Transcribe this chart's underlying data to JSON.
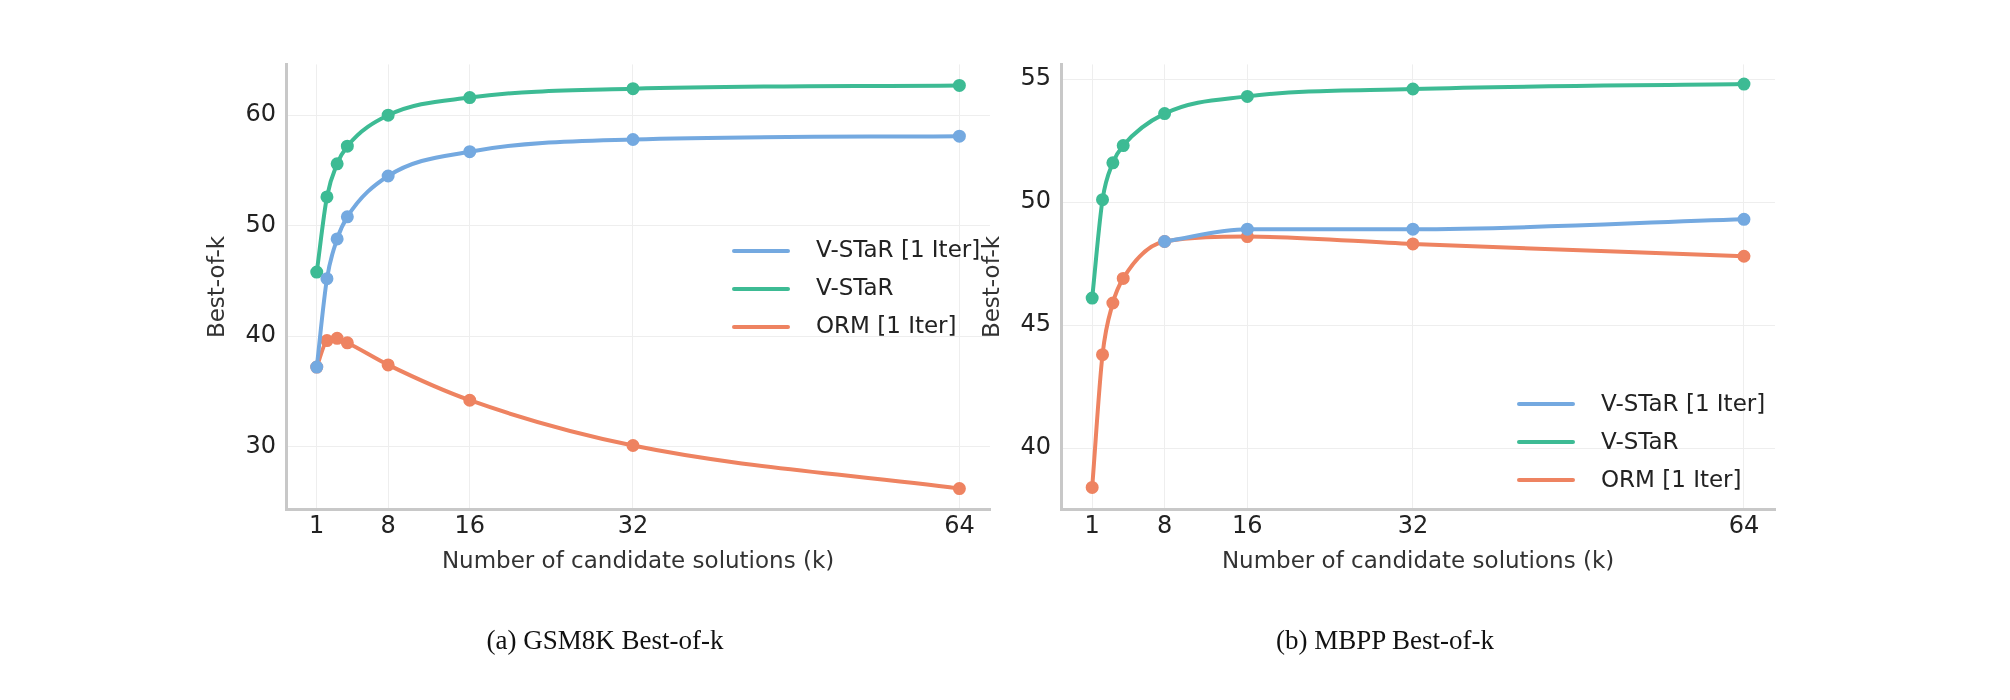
{
  "chart_data": [
    {
      "type": "line",
      "title": "(a) GSM8K Best-of-k",
      "xlabel": "Number of candidate solutions (k)",
      "ylabel": "Best-of-k",
      "x": [
        1,
        2,
        3,
        4,
        8,
        16,
        32,
        64
      ],
      "xlim": [
        -2,
        67
      ],
      "xticks": [
        1,
        8,
        16,
        32,
        64
      ],
      "ylim": [
        24.3,
        64.6
      ],
      "yticks": [
        30,
        40,
        50,
        60
      ],
      "grid": true,
      "legend": "right",
      "marker": "circle",
      "series": [
        {
          "name": "V-STaR [1 Iter]",
          "color": "#74a9e0",
          "values": [
            37.2,
            45.2,
            48.8,
            50.8,
            54.5,
            56.7,
            57.8,
            58.1
          ]
        },
        {
          "name": "V-STaR",
          "color": "#3dbb94",
          "values": [
            45.8,
            52.6,
            55.6,
            57.2,
            60.0,
            61.6,
            62.4,
            62.7
          ]
        },
        {
          "name": "ORM [1 Iter]",
          "color": "#ee8361",
          "values": [
            37.2,
            39.6,
            39.8,
            39.4,
            37.4,
            34.2,
            30.1,
            26.2
          ]
        }
      ]
    },
    {
      "type": "line",
      "title": "(b) MBPP Best-of-k",
      "xlabel": "Number of candidate solutions (k)",
      "ylabel": "Best-of-k",
      "x": [
        1,
        2,
        3,
        4,
        8,
        16,
        32,
        64
      ],
      "xlim": [
        -2,
        67
      ],
      "xticks": [
        1,
        8,
        16,
        32,
        64
      ],
      "ylim": [
        37.5,
        55.6
      ],
      "yticks": [
        40,
        45,
        50,
        55
      ],
      "grid": true,
      "legend": "bottom right",
      "marker": "circle",
      "series": [
        {
          "name": "V-STaR [1 Iter]",
          "color": "#74a9e0",
          "values": [
            null,
            null,
            null,
            null,
            48.4,
            48.9,
            48.9,
            49.3
          ]
        },
        {
          "name": "V-STaR",
          "color": "#3dbb94",
          "values": [
            46.1,
            50.1,
            51.6,
            52.3,
            53.6,
            54.3,
            54.6,
            54.8
          ]
        },
        {
          "name": "ORM [1 Iter]",
          "color": "#ee8361",
          "values": [
            38.4,
            43.8,
            45.9,
            46.9,
            48.4,
            48.6,
            48.3,
            47.8
          ]
        }
      ]
    }
  ]
}
